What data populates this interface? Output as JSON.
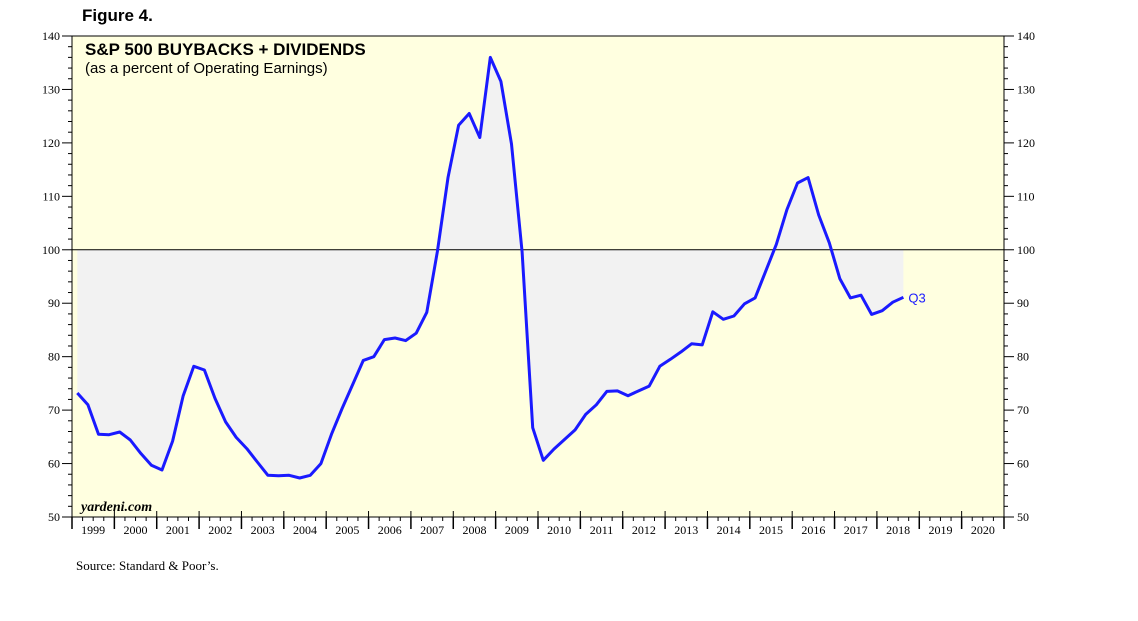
{
  "figure_label": "Figure 4.",
  "source_note": "Source: Standard & Poor’s.",
  "brand": "yardeni.com",
  "colors": {
    "plot_background": "#ffffe0",
    "fill_area": "#f2f2f2",
    "line": "#1a1aff",
    "reference_line": "#000000"
  },
  "chart_data": {
    "type": "line",
    "title": "S&P 500 BUYBACKS + DIVIDENDS",
    "subtitle": "(as a percent of Operating Earnings)",
    "ylim": [
      50,
      140
    ],
    "yticks": [
      50,
      60,
      70,
      80,
      90,
      100,
      110,
      120,
      130,
      140
    ],
    "y_minor_step": 2,
    "y_axes": "left and right",
    "xlim": [
      1999,
      2021
    ],
    "x_tick_labels": [
      "1999",
      "2000",
      "2001",
      "2002",
      "2003",
      "2004",
      "2005",
      "2006",
      "2007",
      "2008",
      "2009",
      "2010",
      "2011",
      "2012",
      "2013",
      "2014",
      "2015",
      "2016",
      "2017",
      "2018",
      "2019",
      "2020"
    ],
    "reference_line": 100,
    "fill_to_reference": true,
    "end_label": "Q3",
    "grid": false,
    "series": [
      {
        "x": [
          1999.125,
          1999.375,
          1999.625,
          1999.875,
          2000.125,
          2000.375,
          2000.625,
          2000.875,
          2001.125,
          2001.375,
          2001.625,
          2001.875,
          2002.125,
          2002.375,
          2002.625,
          2002.875,
          2003.125,
          2003.375,
          2003.625,
          2003.875,
          2004.125,
          2004.375,
          2004.625,
          2004.875,
          2005.125,
          2005.375,
          2005.625,
          2005.875,
          2006.125,
          2006.375,
          2006.625,
          2006.875,
          2007.125,
          2007.375,
          2007.625,
          2007.875,
          2008.125,
          2008.375,
          2008.625,
          2008.875,
          2009.125,
          2009.375,
          2009.625,
          2009.875,
          2010.125,
          2010.375,
          2010.625,
          2010.875,
          2011.125,
          2011.375,
          2011.625,
          2011.875,
          2012.125,
          2012.375,
          2012.625,
          2012.875,
          2013.125,
          2013.375,
          2013.625,
          2013.875,
          2014.125,
          2014.375,
          2014.625,
          2014.875,
          2015.125,
          2015.375,
          2015.625,
          2015.875,
          2016.125,
          2016.375,
          2016.625,
          2016.875,
          2017.125,
          2017.375,
          2017.625,
          2017.875,
          2018.125,
          2018.375,
          2018.625
        ],
        "values": [
          73.2,
          71.0,
          65.5,
          65.4,
          65.9,
          64.4,
          61.9,
          59.7,
          58.8,
          64.2,
          72.7,
          78.2,
          77.5,
          72.2,
          67.8,
          64.9,
          62.8,
          60.3,
          57.8,
          57.7,
          57.8,
          57.3,
          57.8,
          60.0,
          65.5,
          70.3,
          74.8,
          79.3,
          80.0,
          83.2,
          83.5,
          83.0,
          84.4,
          88.3,
          99.7,
          113.5,
          123.3,
          125.5,
          121.0,
          136.0,
          131.5,
          119.8,
          99.6,
          66.7,
          60.6,
          62.7,
          64.5,
          66.3,
          69.2,
          71.0,
          73.5,
          73.6,
          72.7,
          73.6,
          74.5,
          78.2,
          79.5,
          80.9,
          82.4,
          82.2,
          88.4,
          87.0,
          87.6,
          89.9,
          91.0,
          96.0,
          101.0,
          107.5,
          112.5,
          113.5,
          106.5,
          101.3,
          94.6,
          91.0,
          91.5,
          87.9,
          88.6,
          90.2,
          91.1
        ]
      }
    ]
  }
}
